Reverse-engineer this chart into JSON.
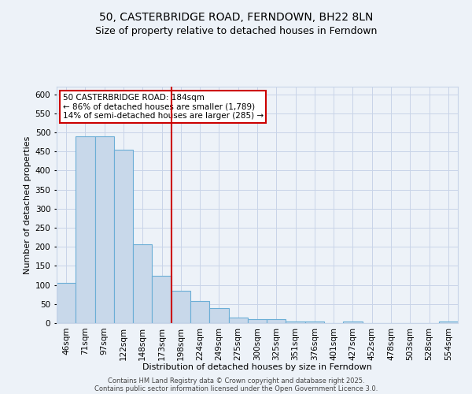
{
  "title_line1": "50, CASTERBRIDGE ROAD, FERNDOWN, BH22 8LN",
  "title_line2": "Size of property relative to detached houses in Ferndown",
  "xlabel": "Distribution of detached houses by size in Ferndown",
  "ylabel": "Number of detached properties",
  "categories": [
    "46sqm",
    "71sqm",
    "97sqm",
    "122sqm",
    "148sqm",
    "173sqm",
    "198sqm",
    "224sqm",
    "249sqm",
    "275sqm",
    "300sqm",
    "325sqm",
    "351sqm",
    "376sqm",
    "401sqm",
    "427sqm",
    "452sqm",
    "478sqm",
    "503sqm",
    "528sqm",
    "554sqm"
  ],
  "values": [
    105,
    490,
    490,
    455,
    207,
    123,
    84,
    57,
    39,
    14,
    10,
    10,
    4,
    4,
    0,
    4,
    0,
    0,
    0,
    0,
    4
  ],
  "bar_color": "#c8d8ea",
  "bar_edge_color": "#6baed6",
  "grid_color": "#c8d4e8",
  "background_color": "#edf2f8",
  "property_line_color": "#cc0000",
  "property_line_x": 6,
  "annotation_text": "50 CASTERBRIDGE ROAD: 184sqm\n← 86% of detached houses are smaller (1,789)\n14% of semi-detached houses are larger (285) →",
  "annotation_box_color": "#cc0000",
  "annotation_bg_color": "#ffffff",
  "ylim": [
    0,
    620
  ],
  "yticks": [
    0,
    50,
    100,
    150,
    200,
    250,
    300,
    350,
    400,
    450,
    500,
    550,
    600
  ],
  "footer_line1": "Contains HM Land Registry data © Crown copyright and database right 2025.",
  "footer_line2": "Contains public sector information licensed under the Open Government Licence 3.0.",
  "title_fontsize": 10,
  "subtitle_fontsize": 9,
  "axis_label_fontsize": 8,
  "tick_fontsize": 7.5,
  "annotation_fontsize": 7.5,
  "footer_fontsize": 6
}
